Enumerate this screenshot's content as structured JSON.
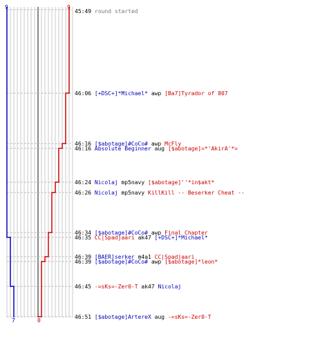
{
  "teams": {
    "blue": {
      "color": "#0000bb",
      "start": "9",
      "end": "7"
    },
    "red": {
      "color": "#cc0000",
      "start": "9",
      "end": "0"
    }
  },
  "neutral_color": "#777777",
  "start_event": {
    "time": "45:49",
    "text": "round started"
  },
  "events": [
    {
      "time": "46:06",
      "killer": "[+DSC+]*Michael*",
      "kteam": "blue",
      "weapon": "awp",
      "victim": "[Ba7]Tyrador of 807",
      "vteam": "red"
    },
    {
      "time": "46:16",
      "killer": "[$abotage]#CoCo#",
      "kteam": "blue",
      "weapon": "awp",
      "victim": "McFly",
      "vteam": "red"
    },
    {
      "time": "46:16",
      "killer": "Absolute Beginner",
      "kteam": "blue",
      "weapon": "aug",
      "victim": "[$abotage]=*'AkirA'*=",
      "vteam": "red"
    },
    {
      "time": "46:24",
      "killer": "Nicolaj",
      "kteam": "blue",
      "weapon": "mp5navy",
      "victim": "[$abotage]''*in$akt*",
      "vteam": "red"
    },
    {
      "time": "46:26",
      "killer": "Nicolaj",
      "kteam": "blue",
      "weapon": "mp5navy",
      "victim": "KillKill -- Beserker Cheat --",
      "vteam": "red"
    },
    {
      "time": "46:34",
      "killer": "[$abotage]#CoCo#",
      "kteam": "blue",
      "weapon": "awp",
      "victim": "Final Chapter",
      "vteam": "red"
    },
    {
      "time": "46:35",
      "killer": "CC|Spadjaari",
      "kteam": "red",
      "weapon": "ak47",
      "victim": "[+DSC+]*Michael*",
      "vteam": "blue"
    },
    {
      "time": "46:39",
      "killer": "[BAER]serker",
      "kteam": "blue",
      "weapon": "m4a1",
      "victim": "CC|Spadjaari",
      "vteam": "red"
    },
    {
      "time": "46:39",
      "killer": "[$abotage]#CoCo#",
      "kteam": "blue",
      "weapon": "awp",
      "victim": "[$abotage]*leon*",
      "vteam": "red"
    },
    {
      "time": "46:45",
      "killer": "-=sKs=-Zer0-T",
      "kteam": "red",
      "weapon": "ak47",
      "victim": "Nicolaj",
      "vteam": "blue"
    },
    {
      "time": "46:51",
      "killer": "[$abotage]ArtereX",
      "kteam": "blue",
      "weapon": "aug",
      "victim": "-=sKs=-Zer0-T",
      "vteam": "red"
    }
  ]
}
